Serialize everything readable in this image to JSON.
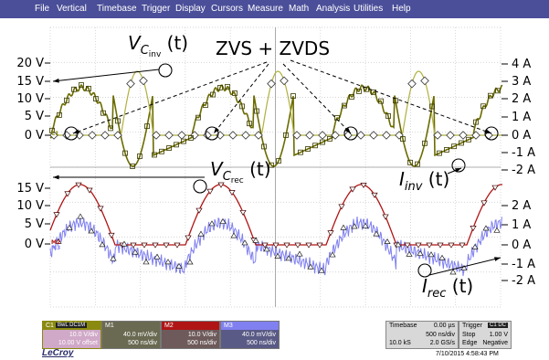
{
  "menu": [
    "File",
    "Vertical",
    "Timebase",
    "Trigger",
    "Display",
    "Cursors",
    "Measure",
    "Math",
    "Analysis",
    "Utilities",
    "Help"
  ],
  "colors": {
    "menubar": "#4b4f99",
    "c1": "#8a8a10",
    "c1_trace": "#6b6b00",
    "m2": "#b01515",
    "m3": "#8080f0",
    "grid": "#c8c8c8"
  },
  "annotations": {
    "vcinv_main": "V",
    "vcinv_sub": "C",
    "vcinv_subsub": "inv",
    "vcinv_arg": "(t)",
    "vcrec_main": "V",
    "vcrec_sub": "C",
    "vcrec_subsub": "rec",
    "vcrec_arg": "(t)",
    "zvs": "ZVS + ZVDS",
    "iinv_main": "I",
    "iinv_sub": "inv",
    "iinv_arg": "(t)",
    "irec_main": "I",
    "irec_sub": "rec",
    "irec_arg": "(t)"
  },
  "left_axis_top": [
    "20 V",
    "15 V",
    "10 V",
    "5 V",
    "0 V"
  ],
  "left_axis_bottom": [
    "15 V",
    "10 V",
    "5 V",
    "0 V"
  ],
  "right_axis_top": [
    "4 A",
    "3 A",
    "2 A",
    "1 A",
    "0 A",
    "-1 A",
    "-2 A"
  ],
  "right_axis_bottom": [
    "2 A",
    "1 A",
    "0 A",
    "-1 A",
    "-2 A"
  ],
  "markers": {
    "c1": "C1",
    "m2": "M2",
    "m3": "M3"
  },
  "channels": {
    "c1": {
      "label": "C1",
      "badge": "BwL DC1M",
      "scale": "10.0 V/div",
      "offset": "10.00 V offset"
    },
    "m1": {
      "label": "M1",
      "scale": "40.0 mV/div",
      "time": "500 ns/div"
    },
    "m2": {
      "label": "M2",
      "scale": "10.0 V/div",
      "time": "500 ns/div"
    },
    "m3": {
      "label": "M3",
      "scale": "40.0 mV/div",
      "time": "500 ns/div"
    }
  },
  "timebase": {
    "label": "Timebase",
    "value": "0.00 µs",
    "div": "500 ns/div",
    "samples": "10.0 kS",
    "rate": "2.0 GS/s"
  },
  "trigger": {
    "label": "Trigger",
    "badge": "C1 DC",
    "mode": "Stop",
    "level": "1.00 V",
    "type": "Edge",
    "slope": "Negative"
  },
  "logo": "LeCroy",
  "datetime": "7/10/2015 4:58:43 PM"
}
